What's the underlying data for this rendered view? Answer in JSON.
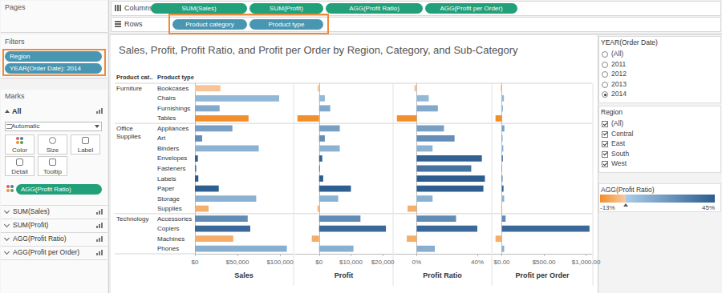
{
  "ui": {
    "pages_label": "Pages",
    "columns_label": "Columns",
    "columns": [
      "SUM(Sales)",
      "SUM(Profit)",
      "AGG(Profit Ratio)",
      "AGG(Profit per Order)"
    ],
    "rows_label": "Rows",
    "rows": [
      "Product category",
      "Product type"
    ],
    "filters_label": "Filters",
    "filters": [
      "Region",
      "YEAR(Order Date): 2014"
    ],
    "marks_label": "Marks",
    "marks_all": "All",
    "mark_type": "Automatic",
    "mark_buttons": [
      "Color",
      "Size",
      "Label",
      "Detail",
      "Tooltip"
    ],
    "color_pill": "AGG(Profit Ratio)",
    "mark_cards": [
      "SUM(Sales)",
      "SUM(Profit)",
      "AGG(Profit Ratio)",
      "AGG(Profit per Order)"
    ],
    "year_filter": {
      "title": "YEAR(Order Date)",
      "options": [
        "(All)",
        "2011",
        "2012",
        "2013",
        "2014"
      ],
      "selected": "2014"
    },
    "region_filter": {
      "title": "Region",
      "options": [
        "(All)",
        "Central",
        "East",
        "South",
        "West"
      ],
      "checked": [
        "(All)",
        "Central",
        "East",
        "South",
        "West"
      ]
    }
  },
  "chart_data": {
    "type": "bar",
    "orientation": "horizontal",
    "grid": false,
    "data_labels": false,
    "title": "Sales, Profit, Profit Ratio, and Profit per Order by Region, Category, and Sub-Category",
    "row_headers": [
      "Product cat..",
      "Product type"
    ],
    "groups": [
      "Furniture",
      null,
      null,
      null,
      "Office Supplies",
      null,
      null,
      null,
      null,
      null,
      null,
      null,
      null,
      "Technology",
      null,
      null,
      null
    ],
    "categories": [
      "Bookcases",
      "Chairs",
      "Furnishings",
      "Tables",
      "Appliances",
      "Art",
      "Binders",
      "Envelopes",
      "Fasteners",
      "Labels",
      "Paper",
      "Storage",
      "Supplies",
      "Accessories",
      "Copiers",
      "Machines",
      "Phones"
    ],
    "panes": [
      {
        "xlabel": "Sales",
        "values": [
          30000,
          99000,
          29000,
          63000,
          44000,
          8500,
          75000,
          3500,
          1500,
          4000,
          28000,
          72000,
          16000,
          62000,
          65000,
          45000,
          108000
        ],
        "xlim": [
          0,
          115000
        ],
        "xticks": [
          {
            "value": 0,
            "label": "$0"
          },
          {
            "value": 50000,
            "label": "$50,000"
          },
          {
            "value": 100000,
            "label": "$100,000"
          }
        ]
      },
      {
        "xlabel": "Profit",
        "values": [
          -500,
          1800,
          3500,
          -6800,
          6500,
          1800,
          6500,
          1000,
          250,
          1300,
          10000,
          6000,
          -500,
          13000,
          21000,
          -2300,
          10800
        ],
        "xlim": [
          -7500,
          23000
        ],
        "xticks": [
          {
            "value": 0,
            "label": "$0"
          },
          {
            "value": 10000,
            "label": "$10,000"
          },
          {
            "value": 20000,
            "label": "$20,000"
          }
        ]
      },
      {
        "xlabel": "Profit Ratio",
        "values": [
          -1.5,
          8,
          14,
          -13,
          18,
          25,
          10.5,
          43,
          36,
          45,
          44,
          10.5,
          -6,
          26,
          40,
          -6.5,
          12
        ],
        "xlim": [
          -15,
          49
        ],
        "xticks": [
          {
            "value": 0,
            "label": "0%"
          },
          {
            "value": 40,
            "label": "40%"
          }
        ]
      },
      {
        "xlabel": "Profit per Order",
        "values": [
          -15,
          25,
          12,
          -75,
          30,
          8,
          18,
          12,
          3,
          8,
          20,
          28,
          -8,
          45,
          1040,
          -75,
          28
        ],
        "xlim": [
          -110,
          1070
        ],
        "xticks": [
          {
            "value": 0,
            "label": "$0.00"
          },
          {
            "value": 500,
            "label": "$500.00"
          },
          {
            "value": 1000,
            "label": "$1,000.00"
          }
        ]
      }
    ],
    "color_scale": {
      "title": "AGG(Profit Ratio)",
      "field": "Profit Ratio",
      "range": [
        -13,
        45
      ],
      "center": 0,
      "ticks": [
        {
          "value": -13,
          "label": "-13%"
        },
        {
          "value": 45,
          "label": "45%"
        }
      ],
      "colors": [
        "#f28e2b",
        "#f7cba4",
        "#a9cce8",
        "#2c5d8f"
      ]
    }
  }
}
